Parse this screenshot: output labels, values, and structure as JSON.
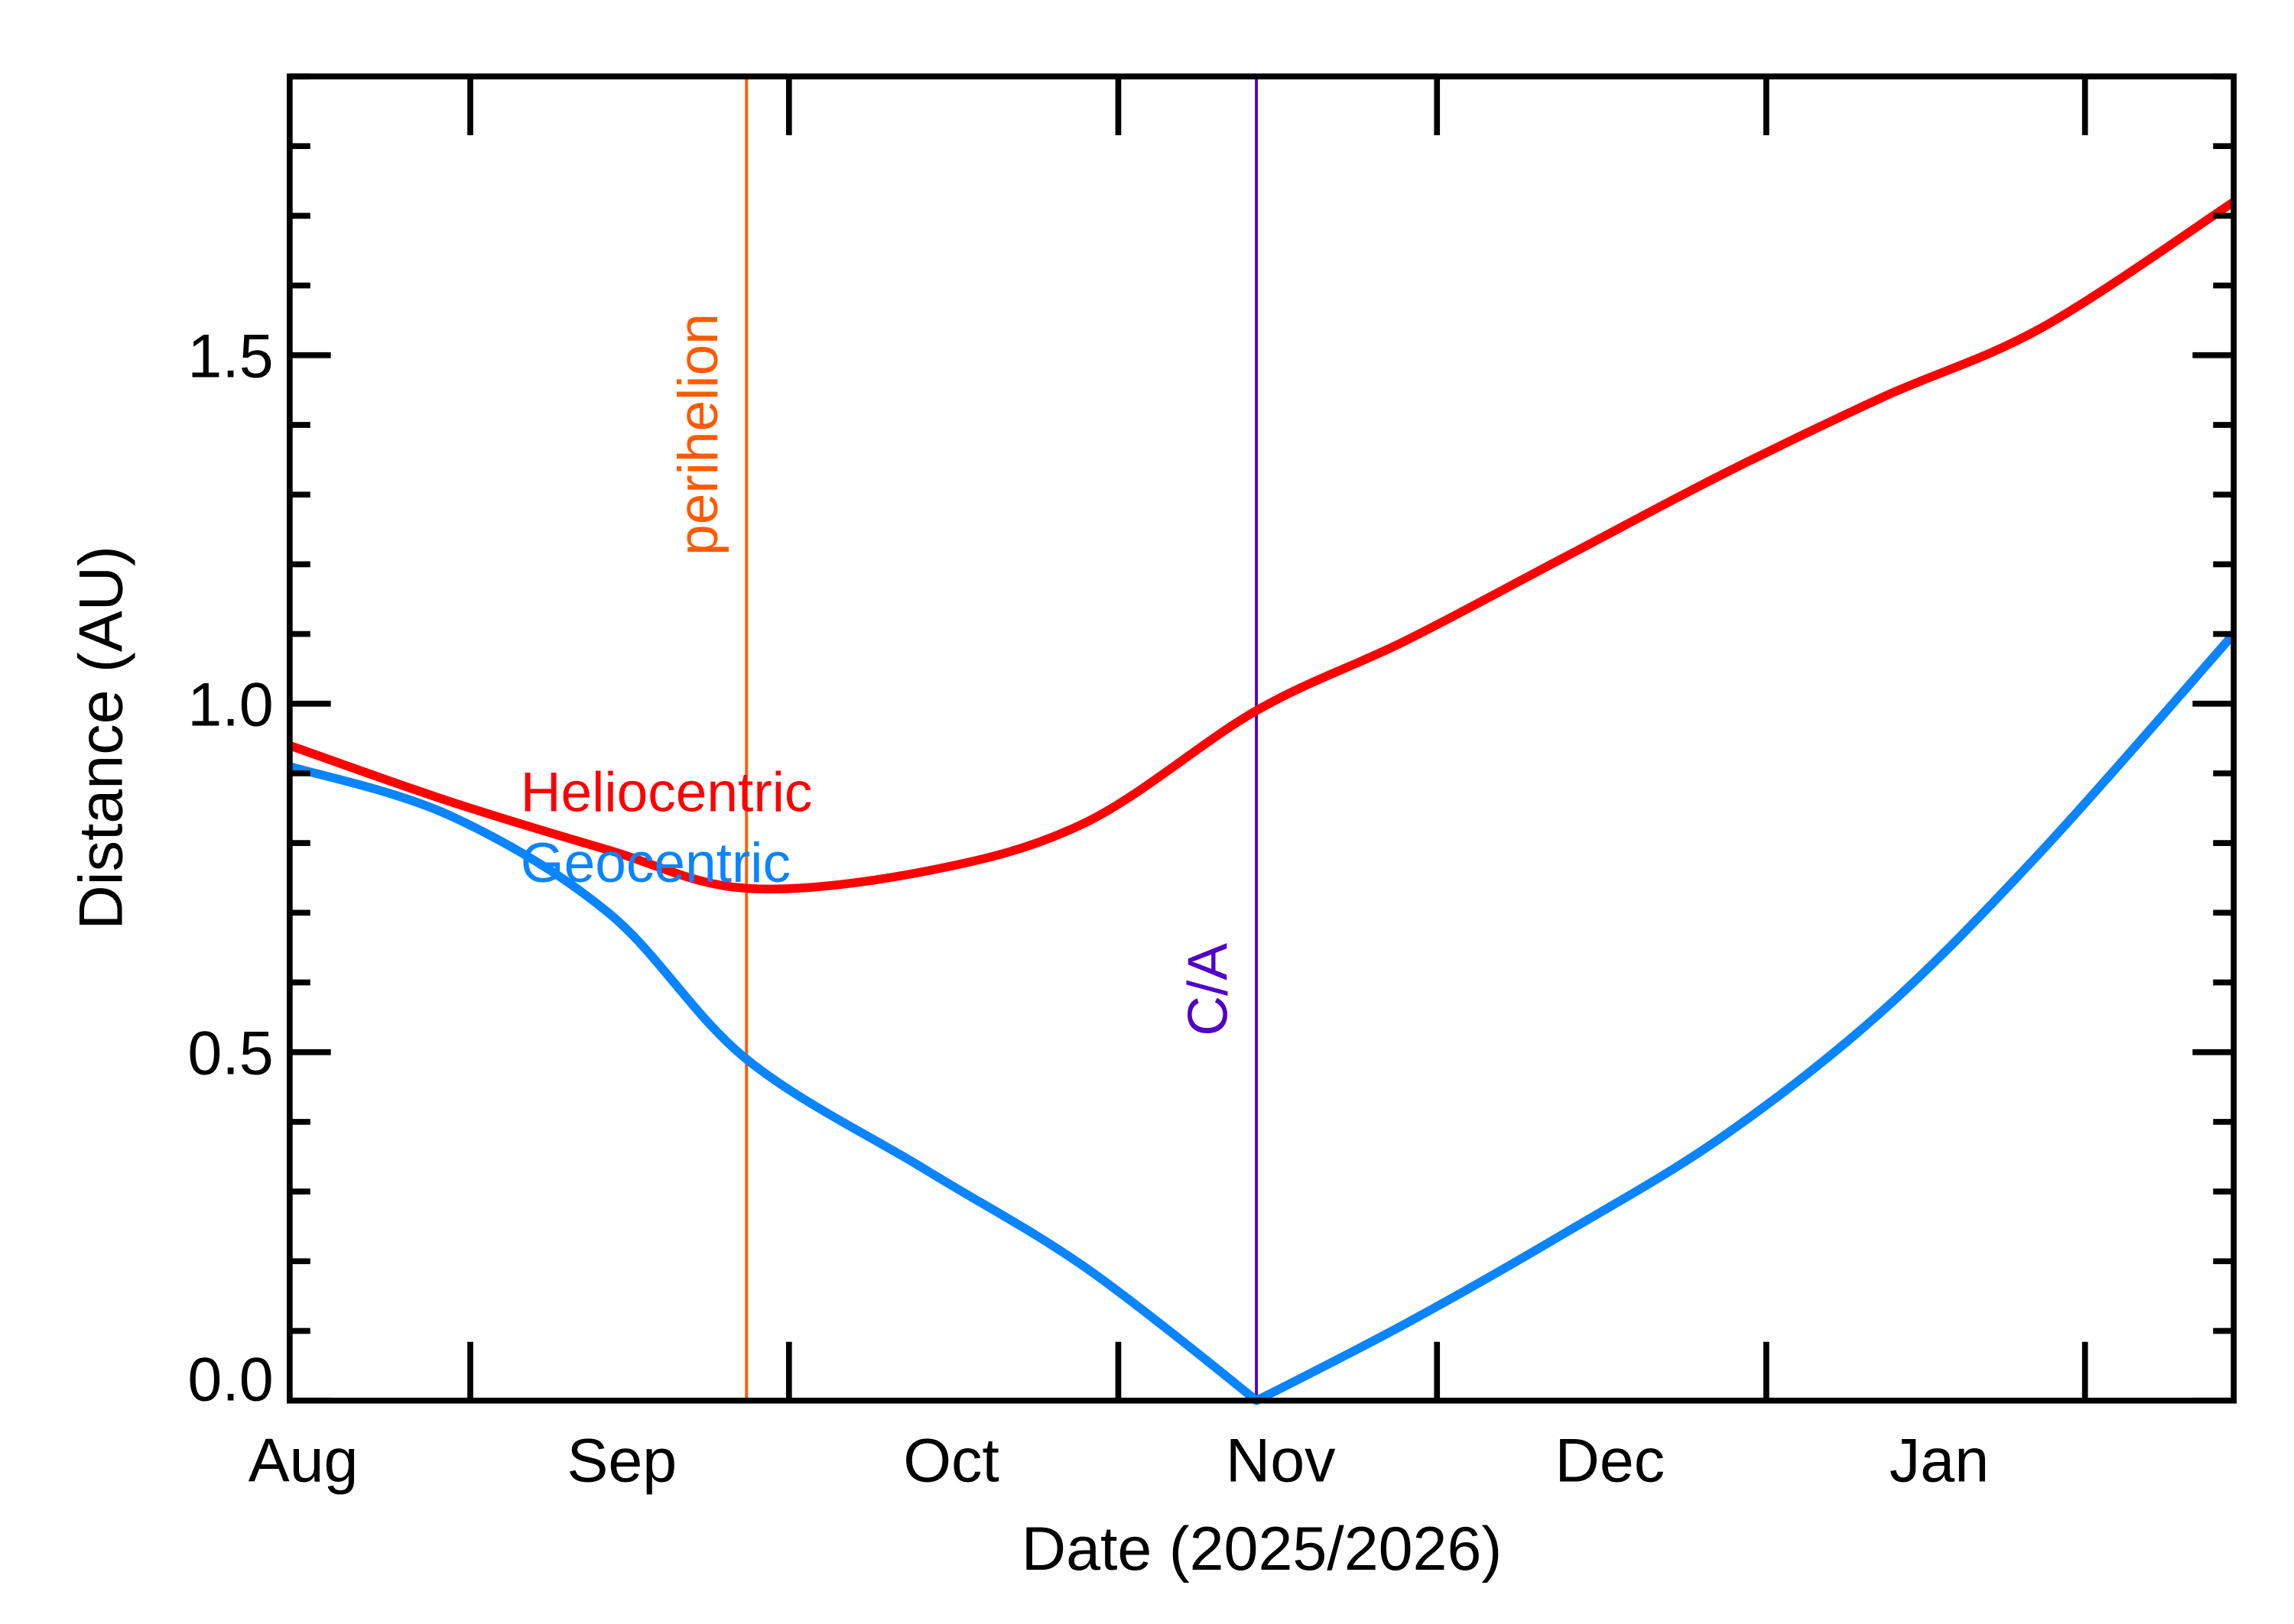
{
  "chart_data": {
    "type": "line",
    "title": "",
    "xlabel": "Date (2025/2026)",
    "ylabel": "Distance (AU)",
    "xlim": [
      "2025-08-01",
      "2026-01-31"
    ],
    "ylim": [
      0,
      1.9
    ],
    "grid": false,
    "x_tick_labels": [
      {
        "label": "Aug",
        "date": "2025-08-02"
      },
      {
        "label": "Sep",
        "date": "2025-09-01"
      },
      {
        "label": "Oct",
        "date": "2025-10-02"
      },
      {
        "label": "Nov",
        "date": "2025-11-02"
      },
      {
        "label": "Dec",
        "date": "2025-12-03"
      },
      {
        "label": "Jan",
        "date": "2026-01-03"
      }
    ],
    "x_major_ticks": [
      "2025-08-18",
      "2025-09-17",
      "2025-10-18",
      "2025-11-17",
      "2025-12-18",
      "2026-01-17"
    ],
    "y_tick_labels": [
      "0.0",
      "0.5",
      "1.0",
      "1.5"
    ],
    "y_tick_values": [
      0,
      0.5,
      1.0,
      1.5
    ],
    "y_minor_step": 0.1,
    "x": [
      "2025-08-01",
      "2025-08-16",
      "2025-08-31",
      "2025-09-13",
      "2025-09-30",
      "2025-10-15",
      "2025-10-31",
      "2025-11-14",
      "2025-11-29",
      "2025-12-14",
      "2025-12-29",
      "2026-01-13",
      "2026-01-31"
    ],
    "series": [
      {
        "name": "Heliocentric",
        "color": "#ff0000",
        "values": [
          0.94,
          0.86,
          0.79,
          0.735,
          0.76,
          0.83,
          0.99,
          1.09,
          1.21,
          1.33,
          1.44,
          1.54,
          1.72
        ]
      },
      {
        "name": "Geocentric",
        "color": "#0a84ff",
        "values": [
          0.91,
          0.84,
          0.7,
          0.49,
          0.33,
          0.19,
          0.0,
          0.11,
          0.24,
          0.38,
          0.56,
          0.79,
          1.1
        ]
      }
    ],
    "annotations": [
      {
        "label": "perihelion",
        "date": "2025-09-13",
        "color": "#ff5a00"
      },
      {
        "label": "C/A",
        "date": "2025-10-31",
        "color": "#5000c8"
      }
    ],
    "legend_placement": "inline, left-center"
  }
}
